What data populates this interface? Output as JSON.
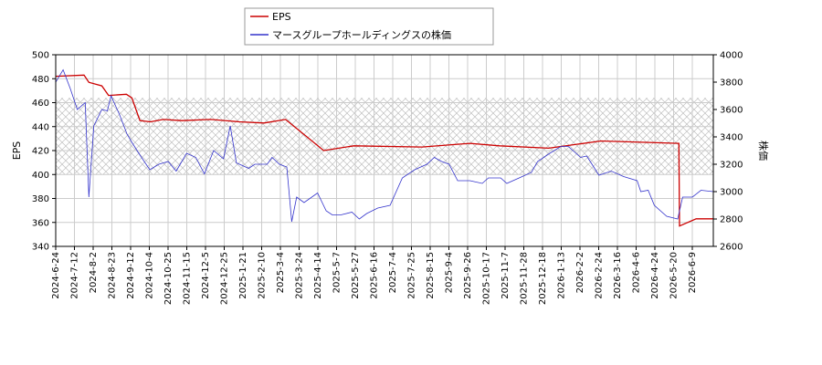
{
  "chart_data": {
    "type": "line",
    "left_axis_label": "EPS",
    "right_axis_label": "株価",
    "left_ylim": [
      340,
      500
    ],
    "right_ylim": [
      2600,
      4000
    ],
    "left_ticks": [
      "340",
      "360",
      "380",
      "400",
      "420",
      "440",
      "460",
      "480",
      "500"
    ],
    "right_ticks": [
      "2600",
      "2800",
      "3000",
      "3200",
      "3400",
      "3600",
      "3800",
      "4000"
    ],
    "x_ticks": [
      "2024-6-24",
      "2024-7-12",
      "2024-8-2",
      "2024-8-23",
      "2024-9-12",
      "2024-10-4",
      "2024-10-25",
      "2024-11-15",
      "2024-12-5",
      "2024-12-25",
      "2025-1-21",
      "2025-2-10",
      "2025-3-4",
      "2025-3-24",
      "2025-4-14",
      "2025-5-7",
      "2025-5-27",
      "2025-6-16",
      "2025-7-4",
      "2025-7-25",
      "2025-8-15",
      "2025-9-4",
      "2025-9-26",
      "2025-10-17",
      "2025-11-7",
      "2025-11-28",
      "2025-12-18",
      "2026-1-13",
      "2026-2-2",
      "2026-2-24",
      "2026-3-16",
      "2026-4-6",
      "2026-4-24",
      "2026-5-20",
      "2026-6-9"
    ],
    "grid": true,
    "legend_position": "top-center",
    "hatched_band": {
      "eps_from": 400,
      "eps_to": 464
    },
    "series": [
      {
        "name": "EPS",
        "axis": "left",
        "color": "#cc0000",
        "points": [
          [
            0,
            482
          ],
          [
            4.6,
            483
          ],
          [
            5.4,
            477
          ],
          [
            7.5,
            474
          ],
          [
            8.6,
            466
          ],
          [
            11.5,
            467
          ],
          [
            12.4,
            464
          ],
          [
            13.7,
            445
          ],
          [
            15.4,
            444
          ],
          [
            17.5,
            446
          ],
          [
            20.5,
            445
          ],
          [
            25.2,
            446
          ],
          [
            29.9,
            444
          ],
          [
            33.9,
            443
          ],
          [
            37.4,
            446
          ],
          [
            43.6,
            420
          ],
          [
            48.5,
            424
          ],
          [
            59.6,
            423
          ],
          [
            67.4,
            426
          ],
          [
            72.2,
            424
          ],
          [
            80.2,
            422
          ],
          [
            88.7,
            428
          ],
          [
            101.4,
            426
          ],
          [
            101.5,
            357
          ],
          [
            104.2,
            363
          ],
          [
            107,
            363
          ]
        ]
      },
      {
        "name": "マースグループホールディングスの株価",
        "axis": "right",
        "color": "#3333cc",
        "points": [
          [
            0,
            3800
          ],
          [
            1.2,
            3890
          ],
          [
            2.4,
            3750
          ],
          [
            3.5,
            3600
          ],
          [
            4.8,
            3650
          ],
          [
            5.4,
            2960
          ],
          [
            6.2,
            3480
          ],
          [
            7.5,
            3600
          ],
          [
            8.4,
            3590
          ],
          [
            9,
            3700
          ],
          [
            10.4,
            3560
          ],
          [
            11.6,
            3420
          ],
          [
            12.4,
            3360
          ],
          [
            13.8,
            3260
          ],
          [
            15.3,
            3160
          ],
          [
            16.8,
            3200
          ],
          [
            18.3,
            3220
          ],
          [
            19.6,
            3150
          ],
          [
            21.3,
            3280
          ],
          [
            22.8,
            3250
          ],
          [
            24.2,
            3130
          ],
          [
            25.7,
            3300
          ],
          [
            27.3,
            3240
          ],
          [
            28.4,
            3480
          ],
          [
            29.4,
            3210
          ],
          [
            31.4,
            3170
          ],
          [
            32.4,
            3200
          ],
          [
            34.4,
            3200
          ],
          [
            35.2,
            3250
          ],
          [
            36.4,
            3200
          ],
          [
            37.6,
            3180
          ],
          [
            38.4,
            2780
          ],
          [
            39.2,
            2960
          ],
          [
            40.4,
            2920
          ],
          [
            42.6,
            2990
          ],
          [
            44,
            2860
          ],
          [
            45,
            2830
          ],
          [
            46.4,
            2830
          ],
          [
            48.2,
            2850
          ],
          [
            49.4,
            2800
          ],
          [
            50.6,
            2840
          ],
          [
            52.4,
            2880
          ],
          [
            54.4,
            2900
          ],
          [
            56.4,
            3100
          ],
          [
            58.4,
            3160
          ],
          [
            60.4,
            3200
          ],
          [
            61.6,
            3250
          ],
          [
            62.8,
            3220
          ],
          [
            64,
            3200
          ],
          [
            65.4,
            3080
          ],
          [
            67.4,
            3080
          ],
          [
            69.4,
            3060
          ],
          [
            70.4,
            3100
          ],
          [
            72.4,
            3100
          ],
          [
            73.4,
            3060
          ],
          [
            75.4,
            3100
          ],
          [
            77.4,
            3140
          ],
          [
            78.4,
            3220
          ],
          [
            80.4,
            3280
          ],
          [
            82.2,
            3330
          ],
          [
            83.4,
            3330
          ],
          [
            85.4,
            3250
          ],
          [
            86.4,
            3260
          ],
          [
            88.4,
            3120
          ],
          [
            90.4,
            3150
          ],
          [
            92.4,
            3110
          ],
          [
            94.6,
            3080
          ],
          [
            95.2,
            3000
          ],
          [
            96.4,
            3010
          ],
          [
            97.4,
            2900
          ],
          [
            99.4,
            2820
          ],
          [
            101.2,
            2800
          ],
          [
            102,
            2960
          ],
          [
            103.6,
            2960
          ],
          [
            105,
            3010
          ],
          [
            107,
            3000
          ]
        ]
      }
    ]
  }
}
